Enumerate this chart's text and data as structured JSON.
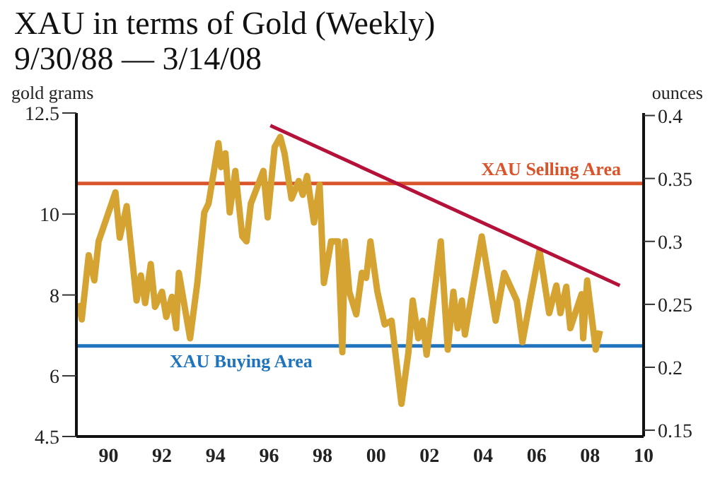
{
  "chart_data": {
    "type": "line",
    "title": "XAU in terms of Gold (Weekly)",
    "subtitle": "9/30/88 — 3/14/08",
    "ylabel": "gold grams",
    "y2label": "ounces",
    "xlim": [
      1988.8,
      2010
    ],
    "xticks": [
      {
        "value": 1990,
        "label": "90"
      },
      {
        "value": 1992,
        "label": "92"
      },
      {
        "value": 1994,
        "label": "94"
      },
      {
        "value": 1996,
        "label": "96"
      },
      {
        "value": 1998,
        "label": "98"
      },
      {
        "value": 2000,
        "label": "00"
      },
      {
        "value": 2002,
        "label": "02"
      },
      {
        "value": 2004,
        "label": "04"
      },
      {
        "value": 2006,
        "label": "06"
      },
      {
        "value": 2008,
        "label": "08"
      },
      {
        "value": 2010,
        "label": "10"
      }
    ],
    "ylim": [
      4.5,
      12.5
    ],
    "yticks": [
      4.5,
      6,
      8,
      10,
      12.5
    ],
    "y2lim": [
      0.145,
      0.402
    ],
    "y2ticks": [
      0.15,
      0.2,
      0.25,
      0.3,
      0.35,
      0.4
    ],
    "marker": "none",
    "line_style": "solid",
    "ref_lines": [
      {
        "axis": "y2",
        "value": 0.346,
        "label": "XAU Selling Area",
        "color": "#d9542a"
      },
      {
        "axis": "y2",
        "value": 0.217,
        "label": "XAU Buying Area",
        "color": "#1f74bd"
      }
    ],
    "series": [
      {
        "color": "#d4a331",
        "axis": "y2",
        "x": [
          1988.89,
          1989.0,
          1989.26,
          1989.47,
          1989.63,
          1990.26,
          1990.42,
          1990.68,
          1991.05,
          1991.21,
          1991.37,
          1991.58,
          1991.74,
          1992.0,
          1992.16,
          1992.37,
          1992.53,
          1992.63,
          1993.05,
          1993.32,
          1993.58,
          1993.74,
          1994.11,
          1994.21,
          1994.37,
          1994.53,
          1994.74,
          1995.0,
          1995.16,
          1995.32,
          1995.79,
          1995.95,
          1996.21,
          1996.42,
          1996.58,
          1996.84,
          1997.11,
          1997.26,
          1997.42,
          1997.68,
          1997.89,
          1998.05,
          1998.32,
          1998.58,
          1998.74,
          1998.84,
          1999.0,
          1999.26,
          1999.47,
          1999.63,
          1999.79,
          2000.05,
          2000.32,
          2000.58,
          2000.95,
          2001.21,
          2001.37,
          2001.58,
          2001.74,
          2001.89,
          2002.42,
          2002.68,
          2002.89,
          2003.05,
          2003.21,
          2003.32,
          2003.95,
          2004.47,
          2004.79,
          2005.26,
          2005.47,
          2006.11,
          2006.47,
          2006.74,
          2006.89,
          2007.11,
          2007.26,
          2007.68,
          2007.74,
          2007.89,
          2008.21,
          2008.37
        ],
        "values": [
          0.251,
          0.238,
          0.289,
          0.269,
          0.3,
          0.339,
          0.303,
          0.328,
          0.253,
          0.273,
          0.251,
          0.282,
          0.248,
          0.26,
          0.24,
          0.256,
          0.231,
          0.275,
          0.223,
          0.267,
          0.323,
          0.33,
          0.378,
          0.359,
          0.37,
          0.323,
          0.356,
          0.304,
          0.3,
          0.33,
          0.356,
          0.319,
          0.375,
          0.383,
          0.37,
          0.334,
          0.348,
          0.337,
          0.352,
          0.315,
          0.345,
          0.267,
          0.3,
          0.3,
          0.212,
          0.3,
          0.26,
          0.242,
          0.275,
          0.271,
          0.3,
          0.26,
          0.234,
          0.237,
          0.171,
          0.212,
          0.253,
          0.223,
          0.237,
          0.21,
          0.3,
          0.214,
          0.26,
          0.231,
          0.253,
          0.226,
          0.304,
          0.237,
          0.275,
          0.253,
          0.22,
          0.293,
          0.243,
          0.265,
          0.243,
          0.264,
          0.231,
          0.258,
          0.223,
          0.269,
          0.214,
          0.229
        ]
      },
      {
        "type": "line",
        "color": "#b5123a",
        "axis": "y2",
        "x": [
          1996.05,
          2009.11
        ],
        "values": [
          0.392,
          0.265
        ]
      }
    ]
  }
}
